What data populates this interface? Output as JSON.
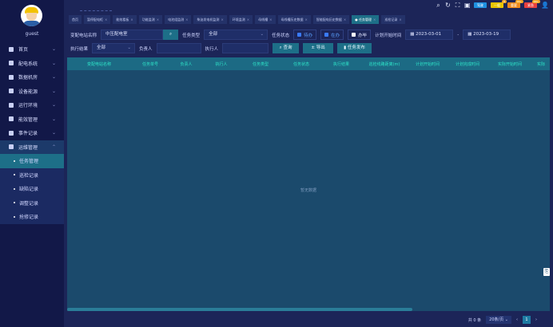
{
  "sidebar": {
    "username": "guest",
    "menu": [
      {
        "label": "首页",
        "icon": "monitor-icon"
      },
      {
        "label": "配电系统",
        "icon": "gear-icon"
      },
      {
        "label": "数据机房",
        "icon": "server-icon"
      },
      {
        "label": "设备能源",
        "icon": "chart-icon"
      },
      {
        "label": "运行环境",
        "icon": "flag-icon"
      },
      {
        "label": "能效管理",
        "icon": "folder-icon"
      },
      {
        "label": "事件记录",
        "icon": "document-icon"
      },
      {
        "label": "运维管理",
        "icon": "calendar-icon"
      }
    ],
    "submenu": [
      {
        "label": "任务管理",
        "active": true
      },
      {
        "label": "巡检记录"
      },
      {
        "label": "缺陷记录"
      },
      {
        "label": "调整记录"
      },
      {
        "label": "抢修记录"
      }
    ]
  },
  "header": {
    "buttons": [
      {
        "label": "驾驶",
        "color": "#1e90e0"
      },
      {
        "label": "一般",
        "color": "#e8c400",
        "badge": "8"
      },
      {
        "label": "重要",
        "color": "#f08a1c",
        "badge": "99+"
      },
      {
        "label": "紧急",
        "color": "#e8403e",
        "badge": "99+"
      }
    ]
  },
  "tabs": [
    "首页",
    "暂停配电柜",
    "能效看板",
    "功能监测",
    "电池组监测",
    "柴油发电机监测",
    "环境监测",
    "母线槽",
    "母线槽历史数据",
    "智能配电历史数据",
    "任务管理",
    "巡检记录"
  ],
  "active_tab": "任务管理",
  "filters": {
    "station_label": "变配电站名称",
    "station_value": "中压配电室",
    "type_label": "任务类型",
    "type_value": "全部",
    "status_label": "任务状态",
    "status_options": [
      {
        "label": "待办",
        "checked": true
      },
      {
        "label": "在办",
        "checked": true
      },
      {
        "label": "办毕",
        "checked": false
      }
    ],
    "plan_time_label": "计划开始时间",
    "date_from": "2023-03-01",
    "date_to": "2023-03-19",
    "result_label": "执行结果",
    "result_value": "全部",
    "owner_label": "负责人",
    "owner_value": "",
    "executor_label": "执行人",
    "executor_value": "",
    "query_label": "查询",
    "export_label": "导出",
    "publish_label": "任务发布"
  },
  "table": {
    "columns": [
      "变配电站名称",
      "任务单号",
      "负责人",
      "执行人",
      "任务类型",
      "任务状态",
      "执行结果",
      "巡检线路距离(m)",
      "计划开始时间",
      "计划完成时间",
      "实际开始时间",
      "实际"
    ],
    "empty_text": "暂无数据"
  },
  "pager": {
    "total": "共 0 条",
    "page_size": "20条/页",
    "current": "1"
  }
}
